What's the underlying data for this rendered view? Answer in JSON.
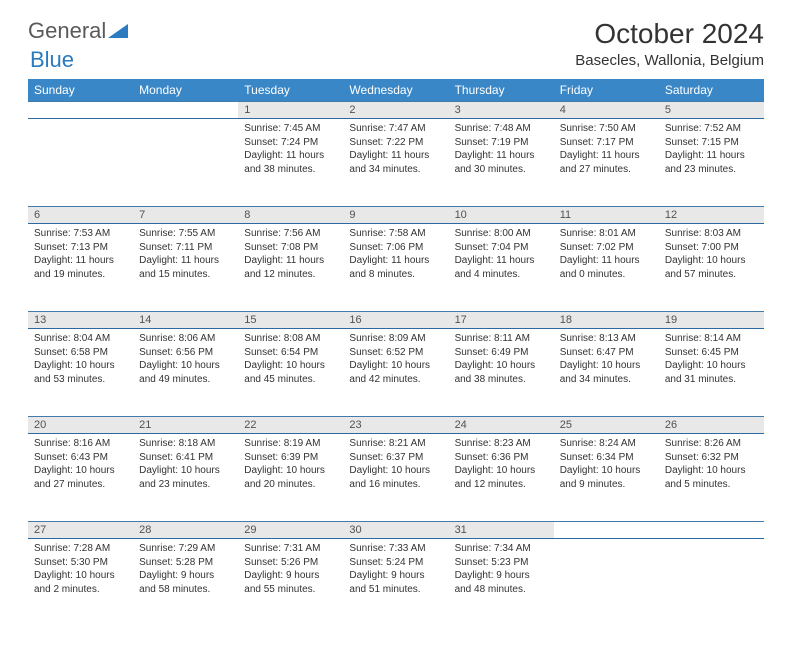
{
  "logo": {
    "general": "General",
    "blue": "Blue"
  },
  "title": "October 2024",
  "location": "Basecles, Wallonia, Belgium",
  "colors": {
    "header_bg": "#3a87c8",
    "daynum_bg": "#e8e8e8",
    "row_border": "#447aa8",
    "text": "#333333"
  },
  "weekdays": [
    "Sunday",
    "Monday",
    "Tuesday",
    "Wednesday",
    "Thursday",
    "Friday",
    "Saturday"
  ],
  "weeks": [
    [
      null,
      null,
      {
        "n": "1",
        "sr": "Sunrise: 7:45 AM",
        "ss": "Sunset: 7:24 PM",
        "dl": "Daylight: 11 hours and 38 minutes."
      },
      {
        "n": "2",
        "sr": "Sunrise: 7:47 AM",
        "ss": "Sunset: 7:22 PM",
        "dl": "Daylight: 11 hours and 34 minutes."
      },
      {
        "n": "3",
        "sr": "Sunrise: 7:48 AM",
        "ss": "Sunset: 7:19 PM",
        "dl": "Daylight: 11 hours and 30 minutes."
      },
      {
        "n": "4",
        "sr": "Sunrise: 7:50 AM",
        "ss": "Sunset: 7:17 PM",
        "dl": "Daylight: 11 hours and 27 minutes."
      },
      {
        "n": "5",
        "sr": "Sunrise: 7:52 AM",
        "ss": "Sunset: 7:15 PM",
        "dl": "Daylight: 11 hours and 23 minutes."
      }
    ],
    [
      {
        "n": "6",
        "sr": "Sunrise: 7:53 AM",
        "ss": "Sunset: 7:13 PM",
        "dl": "Daylight: 11 hours and 19 minutes."
      },
      {
        "n": "7",
        "sr": "Sunrise: 7:55 AM",
        "ss": "Sunset: 7:11 PM",
        "dl": "Daylight: 11 hours and 15 minutes."
      },
      {
        "n": "8",
        "sr": "Sunrise: 7:56 AM",
        "ss": "Sunset: 7:08 PM",
        "dl": "Daylight: 11 hours and 12 minutes."
      },
      {
        "n": "9",
        "sr": "Sunrise: 7:58 AM",
        "ss": "Sunset: 7:06 PM",
        "dl": "Daylight: 11 hours and 8 minutes."
      },
      {
        "n": "10",
        "sr": "Sunrise: 8:00 AM",
        "ss": "Sunset: 7:04 PM",
        "dl": "Daylight: 11 hours and 4 minutes."
      },
      {
        "n": "11",
        "sr": "Sunrise: 8:01 AM",
        "ss": "Sunset: 7:02 PM",
        "dl": "Daylight: 11 hours and 0 minutes."
      },
      {
        "n": "12",
        "sr": "Sunrise: 8:03 AM",
        "ss": "Sunset: 7:00 PM",
        "dl": "Daylight: 10 hours and 57 minutes."
      }
    ],
    [
      {
        "n": "13",
        "sr": "Sunrise: 8:04 AM",
        "ss": "Sunset: 6:58 PM",
        "dl": "Daylight: 10 hours and 53 minutes."
      },
      {
        "n": "14",
        "sr": "Sunrise: 8:06 AM",
        "ss": "Sunset: 6:56 PM",
        "dl": "Daylight: 10 hours and 49 minutes."
      },
      {
        "n": "15",
        "sr": "Sunrise: 8:08 AM",
        "ss": "Sunset: 6:54 PM",
        "dl": "Daylight: 10 hours and 45 minutes."
      },
      {
        "n": "16",
        "sr": "Sunrise: 8:09 AM",
        "ss": "Sunset: 6:52 PM",
        "dl": "Daylight: 10 hours and 42 minutes."
      },
      {
        "n": "17",
        "sr": "Sunrise: 8:11 AM",
        "ss": "Sunset: 6:49 PM",
        "dl": "Daylight: 10 hours and 38 minutes."
      },
      {
        "n": "18",
        "sr": "Sunrise: 8:13 AM",
        "ss": "Sunset: 6:47 PM",
        "dl": "Daylight: 10 hours and 34 minutes."
      },
      {
        "n": "19",
        "sr": "Sunrise: 8:14 AM",
        "ss": "Sunset: 6:45 PM",
        "dl": "Daylight: 10 hours and 31 minutes."
      }
    ],
    [
      {
        "n": "20",
        "sr": "Sunrise: 8:16 AM",
        "ss": "Sunset: 6:43 PM",
        "dl": "Daylight: 10 hours and 27 minutes."
      },
      {
        "n": "21",
        "sr": "Sunrise: 8:18 AM",
        "ss": "Sunset: 6:41 PM",
        "dl": "Daylight: 10 hours and 23 minutes."
      },
      {
        "n": "22",
        "sr": "Sunrise: 8:19 AM",
        "ss": "Sunset: 6:39 PM",
        "dl": "Daylight: 10 hours and 20 minutes."
      },
      {
        "n": "23",
        "sr": "Sunrise: 8:21 AM",
        "ss": "Sunset: 6:37 PM",
        "dl": "Daylight: 10 hours and 16 minutes."
      },
      {
        "n": "24",
        "sr": "Sunrise: 8:23 AM",
        "ss": "Sunset: 6:36 PM",
        "dl": "Daylight: 10 hours and 12 minutes."
      },
      {
        "n": "25",
        "sr": "Sunrise: 8:24 AM",
        "ss": "Sunset: 6:34 PM",
        "dl": "Daylight: 10 hours and 9 minutes."
      },
      {
        "n": "26",
        "sr": "Sunrise: 8:26 AM",
        "ss": "Sunset: 6:32 PM",
        "dl": "Daylight: 10 hours and 5 minutes."
      }
    ],
    [
      {
        "n": "27",
        "sr": "Sunrise: 7:28 AM",
        "ss": "Sunset: 5:30 PM",
        "dl": "Daylight: 10 hours and 2 minutes."
      },
      {
        "n": "28",
        "sr": "Sunrise: 7:29 AM",
        "ss": "Sunset: 5:28 PM",
        "dl": "Daylight: 9 hours and 58 minutes."
      },
      {
        "n": "29",
        "sr": "Sunrise: 7:31 AM",
        "ss": "Sunset: 5:26 PM",
        "dl": "Daylight: 9 hours and 55 minutes."
      },
      {
        "n": "30",
        "sr": "Sunrise: 7:33 AM",
        "ss": "Sunset: 5:24 PM",
        "dl": "Daylight: 9 hours and 51 minutes."
      },
      {
        "n": "31",
        "sr": "Sunrise: 7:34 AM",
        "ss": "Sunset: 5:23 PM",
        "dl": "Daylight: 9 hours and 48 minutes."
      },
      null,
      null
    ]
  ]
}
